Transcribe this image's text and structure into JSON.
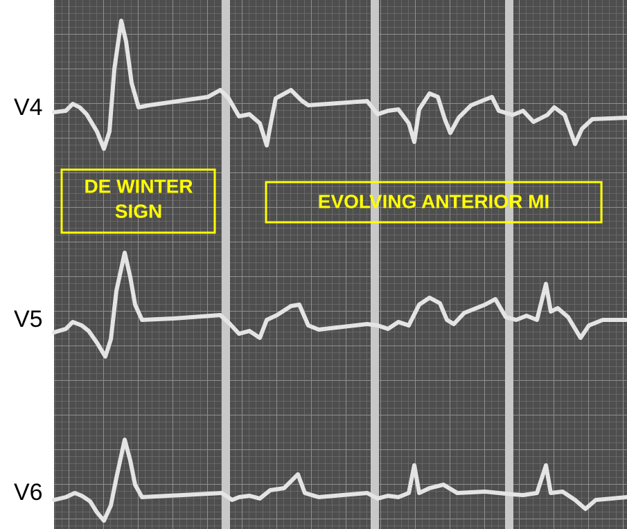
{
  "leads": [
    "V4",
    "V5",
    "V6"
  ],
  "annotations": {
    "de_winter": [
      "DE WINTER",
      "SIGN"
    ],
    "evolving": "EVOLVING ANTERIOR MI"
  }
}
